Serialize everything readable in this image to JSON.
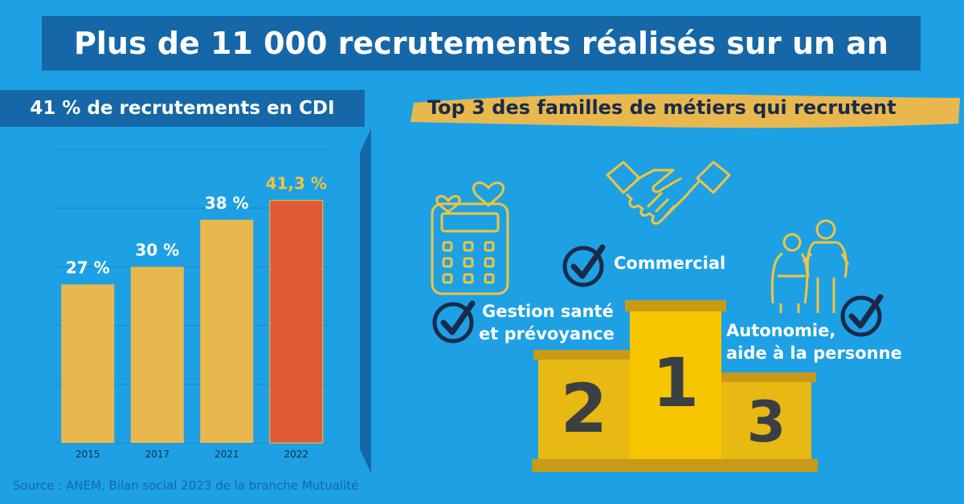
{
  "title": "Plus de 11 000 recrutements réalisés sur un an",
  "subtitle": "41 % de recrutements en CDI",
  "source": "Source : ANEM, Bilan social 2023 de la branche Mutualité",
  "colors": {
    "background": "#1da1e4",
    "banner": "#1667a8",
    "bar": "#e8b84f",
    "highlight": "#e05b33",
    "highlight_label": "#f2c43c",
    "podium": "#e8b813",
    "podium_center": "#f7c500",
    "navy": "#1a2a4a"
  },
  "chart_data": {
    "type": "bar",
    "categories": [
      "2015",
      "2017",
      "2021",
      "2022"
    ],
    "values": [
      27,
      30,
      38,
      41.3
    ],
    "value_labels": [
      "27 %",
      "30 %",
      "38 %",
      "41,3 %"
    ],
    "title": "41 % de recrutements en CDI",
    "xlabel": "",
    "ylabel": "",
    "ylim": [
      0,
      50
    ],
    "grid": true,
    "highlight_index": 3
  },
  "top3": {
    "heading": "Top 3 des familles de métiers qui recrutent",
    "items": [
      {
        "rank": "1",
        "label_lines": [
          "Commercial"
        ],
        "icon": "handshake-icon"
      },
      {
        "rank": "2",
        "label_lines": [
          "Gestion santé",
          "et prévoyance"
        ],
        "icon": "calculator-icon"
      },
      {
        "rank": "3",
        "label_lines": [
          "Autonomie,",
          "aide à la personne"
        ],
        "icon": "caregiver-icon"
      }
    ]
  }
}
